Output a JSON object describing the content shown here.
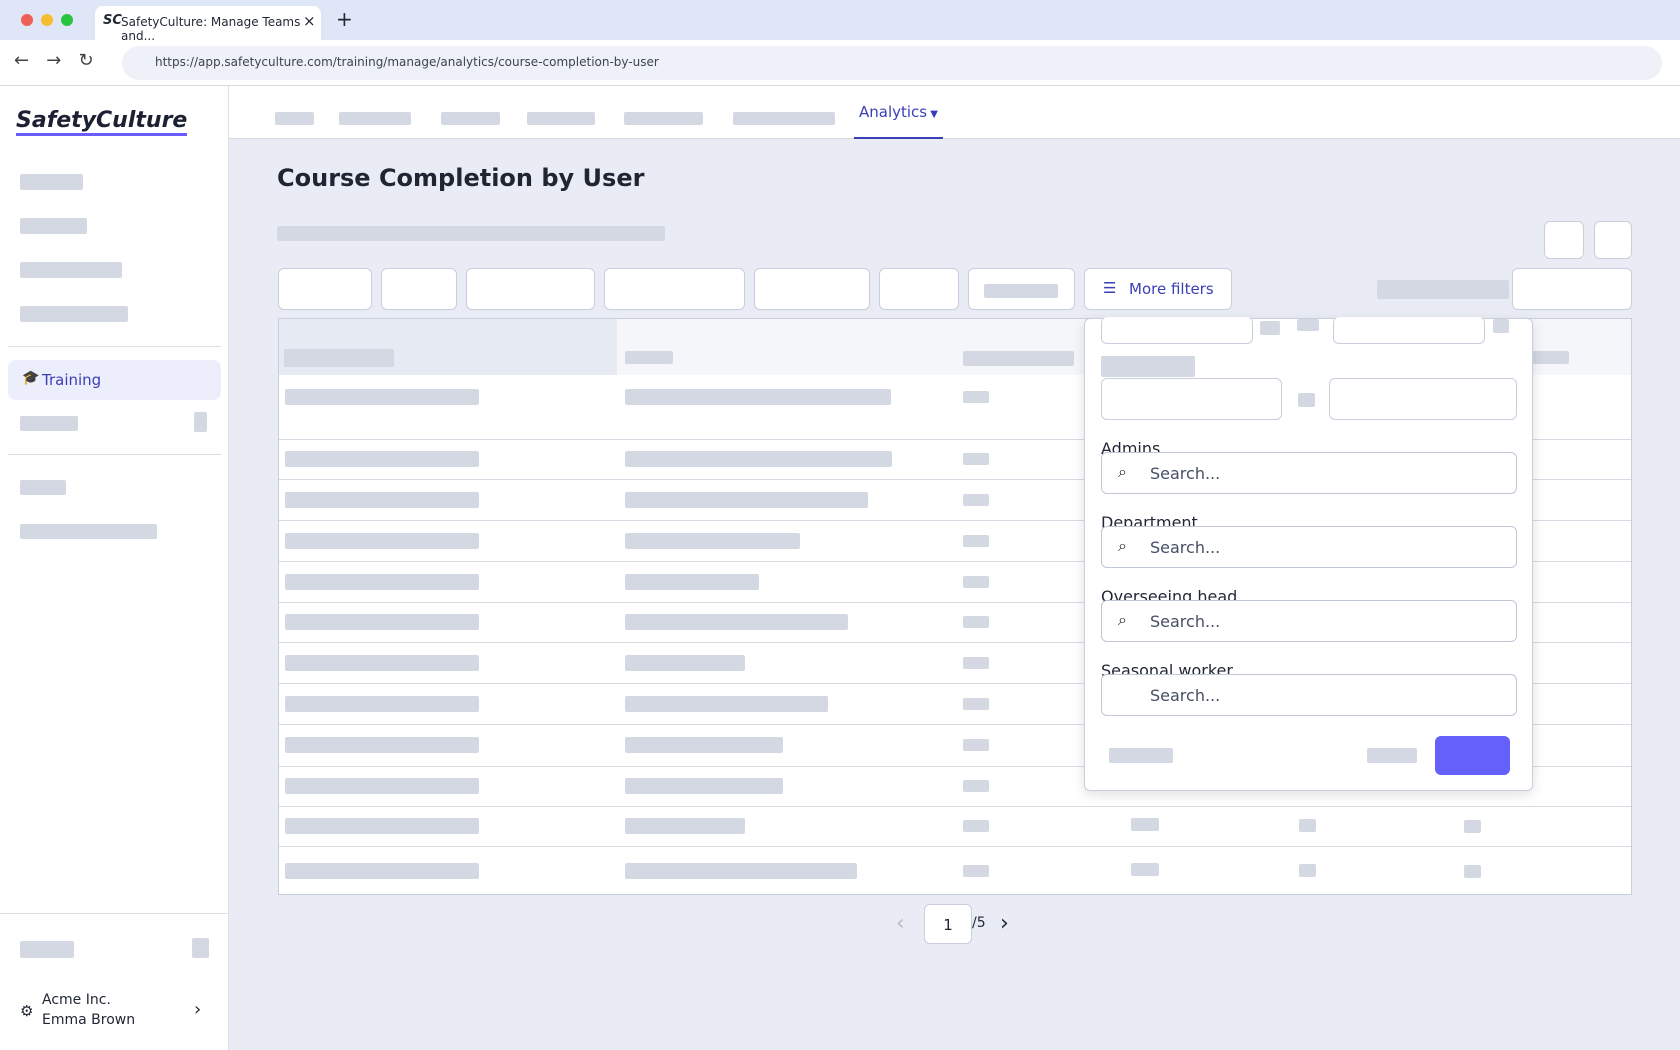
{
  "browser": {
    "tab_title": "SafetyCulture: Manage Teams and...",
    "url": "https://app.safetyculture.com/training/manage/analytics/course-completion-by-user"
  },
  "sidebar": {
    "logo": "SafetyCulture",
    "active_item": "Training",
    "org": "Acme Inc.",
    "user": "Emma Brown"
  },
  "nav": {
    "active_tab": "Analytics"
  },
  "page": {
    "title": "Course Completion by User",
    "more_filters": "More filters"
  },
  "filter_panel": {
    "fields": [
      {
        "label": "Admins",
        "placeholder": "Search..."
      },
      {
        "label": "Department",
        "placeholder": "Search..."
      },
      {
        "label": "Overseeing head",
        "placeholder": "Search..."
      },
      {
        "label": "Seasonal worker",
        "placeholder": "Search..."
      }
    ]
  },
  "pagination": {
    "page": "1",
    "total": "/5"
  }
}
